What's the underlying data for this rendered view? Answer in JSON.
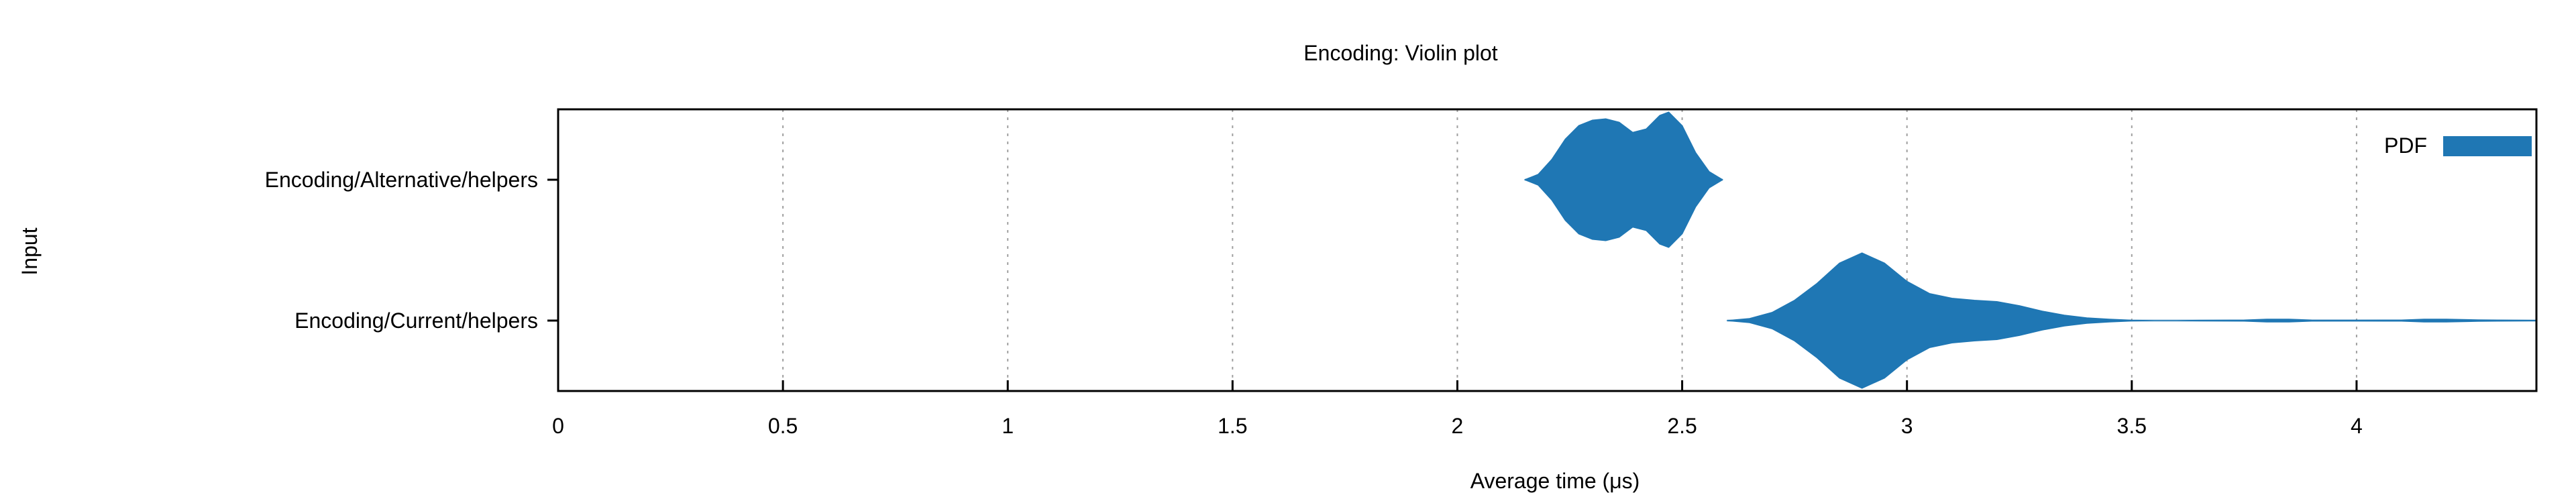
{
  "chart_data": {
    "type": "violin",
    "title": "Encoding: Violin plot",
    "xlabel": "Average time (μs)",
    "ylabel": "Input",
    "xlim": [
      0,
      4.4
    ],
    "x_ticks": [
      "0",
      "0.5",
      "1",
      "1.5",
      "2",
      "2.5",
      "3",
      "3.5",
      "4"
    ],
    "x_tick_values": [
      0,
      0.5,
      1,
      1.5,
      2,
      2.5,
      3,
      3.5,
      4
    ],
    "grid": "vertical dashed",
    "legend": {
      "label": "PDF",
      "placement": "top-right"
    },
    "color": "#1f77b4",
    "categories": [
      "Encoding/Alternative/helpers",
      "Encoding/Current/helpers"
    ],
    "series": [
      {
        "category": "Encoding/Alternative/helpers",
        "density": [
          [
            2.15,
            0.0
          ],
          [
            2.18,
            0.08
          ],
          [
            2.21,
            0.3
          ],
          [
            2.24,
            0.6
          ],
          [
            2.27,
            0.8
          ],
          [
            2.3,
            0.88
          ],
          [
            2.33,
            0.9
          ],
          [
            2.36,
            0.85
          ],
          [
            2.39,
            0.7
          ],
          [
            2.42,
            0.75
          ],
          [
            2.45,
            0.95
          ],
          [
            2.47,
            1.0
          ],
          [
            2.5,
            0.8
          ],
          [
            2.53,
            0.4
          ],
          [
            2.56,
            0.12
          ],
          [
            2.59,
            0.0
          ]
        ]
      },
      {
        "category": "Encoding/Current/helpers",
        "density": [
          [
            2.6,
            0.0
          ],
          [
            2.65,
            0.03
          ],
          [
            2.7,
            0.12
          ],
          [
            2.75,
            0.3
          ],
          [
            2.8,
            0.55
          ],
          [
            2.85,
            0.85
          ],
          [
            2.9,
            1.0
          ],
          [
            2.95,
            0.85
          ],
          [
            3.0,
            0.58
          ],
          [
            3.05,
            0.4
          ],
          [
            3.1,
            0.33
          ],
          [
            3.15,
            0.3
          ],
          [
            3.2,
            0.28
          ],
          [
            3.25,
            0.22
          ],
          [
            3.3,
            0.14
          ],
          [
            3.35,
            0.08
          ],
          [
            3.4,
            0.04
          ],
          [
            3.45,
            0.02
          ],
          [
            3.5,
            0.005
          ],
          [
            3.55,
            0.0
          ],
          [
            3.6,
            0.0
          ],
          [
            3.65,
            0.004
          ],
          [
            3.75,
            0.008
          ],
          [
            3.8,
            0.02
          ],
          [
            3.85,
            0.02
          ],
          [
            3.9,
            0.008
          ],
          [
            4.0,
            0.006
          ],
          [
            4.1,
            0.008
          ],
          [
            4.15,
            0.02
          ],
          [
            4.2,
            0.02
          ],
          [
            4.27,
            0.01
          ],
          [
            4.4,
            0.003
          ]
        ]
      }
    ]
  }
}
